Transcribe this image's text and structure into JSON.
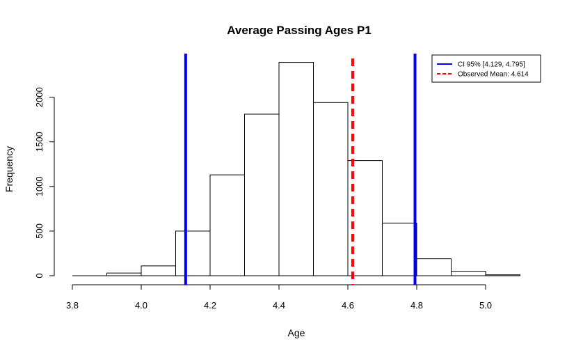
{
  "chart_data": {
    "type": "bar",
    "title": "Average Passing Ages P1",
    "xlabel": "Age",
    "ylabel": "Frequency",
    "xlim": [
      3.8,
      5.1
    ],
    "ylim": [
      0,
      2400
    ],
    "x_ticks": [
      "3.8",
      "4.0",
      "4.2",
      "4.4",
      "4.6",
      "4.8",
      "5.0"
    ],
    "y_ticks": [
      "0",
      "500",
      "1000",
      "1500",
      "2000"
    ],
    "bins": [
      {
        "start": 3.9,
        "end": 4.0,
        "count": 30
      },
      {
        "start": 4.0,
        "end": 4.1,
        "count": 110
      },
      {
        "start": 4.1,
        "end": 4.2,
        "count": 500
      },
      {
        "start": 4.2,
        "end": 4.3,
        "count": 1130
      },
      {
        "start": 4.3,
        "end": 4.4,
        "count": 1810
      },
      {
        "start": 4.4,
        "end": 4.5,
        "count": 2390
      },
      {
        "start": 4.5,
        "end": 4.6,
        "count": 1940
      },
      {
        "start": 4.6,
        "end": 4.7,
        "count": 1290
      },
      {
        "start": 4.7,
        "end": 4.8,
        "count": 590
      },
      {
        "start": 4.8,
        "end": 4.9,
        "count": 190
      },
      {
        "start": 4.9,
        "end": 5.0,
        "count": 50
      },
      {
        "start": 5.0,
        "end": 5.1,
        "count": 10
      }
    ],
    "reference_lines": [
      {
        "value": 4.129,
        "color": "#0000ff",
        "style": "solid",
        "role": "ci_lower"
      },
      {
        "value": 4.795,
        "color": "#0000ff",
        "style": "solid",
        "role": "ci_upper"
      },
      {
        "value": 4.614,
        "color": "#ff0000",
        "style": "dashed",
        "role": "observed_mean"
      }
    ],
    "legend": {
      "position": "top-right",
      "entries": [
        {
          "label": "CI 95% [4.129, 4.795]",
          "color": "#0000ff",
          "style": "solid"
        },
        {
          "label": "Observed Mean: 4.614",
          "color": "#ff0000",
          "style": "dashed"
        }
      ]
    }
  }
}
